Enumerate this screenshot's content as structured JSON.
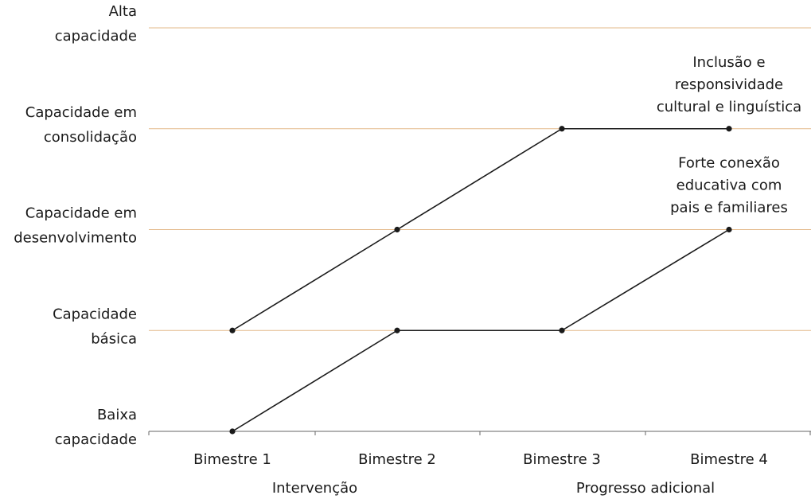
{
  "chart_data": {
    "type": "line",
    "categories": [
      "Bimestre 1",
      "Bimestre 2",
      "Bimestre 3",
      "Bimestre 4"
    ],
    "category_groups": [
      {
        "label": "Intervenção",
        "categories": [
          "Bimestre 1",
          "Bimestre 2"
        ]
      },
      {
        "label": "Progresso adicional",
        "categories": [
          "Bimestre 3",
          "Bimestre 4"
        ]
      }
    ],
    "y_levels": [
      [
        "Baixa",
        "capacidade"
      ],
      [
        "Capacidade",
        "básica"
      ],
      [
        "Capacidade em",
        "desenvolvimento"
      ],
      [
        "Capacidade em",
        "consolidação"
      ],
      [
        "Alta",
        "capacidade"
      ]
    ],
    "ylim": [
      0,
      4
    ],
    "grid": true,
    "series": [
      {
        "name": "Inclusão e responsividade cultural e linguística",
        "label_lines": [
          "Inclusão e",
          "responsividade",
          "cultural e linguística"
        ],
        "values": [
          1,
          2,
          3,
          3
        ]
      },
      {
        "name": "Forte conexão educativa com pais e familiares",
        "label_lines": [
          "Forte conexão",
          "educativa com",
          "pais e familiares"
        ],
        "values": [
          0,
          1,
          1,
          2
        ]
      }
    ],
    "colors": {
      "line": "#1a1a1a",
      "grid": "#e3b98a",
      "axis": "#666666"
    }
  }
}
